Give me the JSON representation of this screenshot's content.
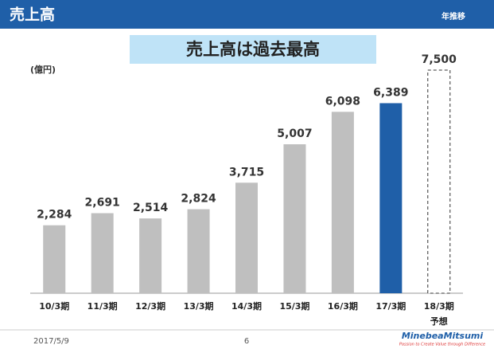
{
  "header": {
    "title": "売上高",
    "note": "年推移"
  },
  "chart_data": {
    "type": "bar",
    "title": "売上高は過去最高",
    "unit_label": "(億円)",
    "categories": [
      "10/3期",
      "11/3期",
      "12/3期",
      "13/3期",
      "14/3期",
      "15/3期",
      "16/3期",
      "17/3期",
      "18/3期"
    ],
    "category_sublabels": [
      null,
      null,
      null,
      null,
      null,
      null,
      null,
      null,
      "予想"
    ],
    "values": [
      2284,
      2691,
      2514,
      2824,
      3715,
      5007,
      6098,
      6389,
      7500
    ],
    "value_labels": [
      "2,284",
      "2,691",
      "2,514",
      "2,824",
      "3,715",
      "5,007",
      "6,098",
      "6,389",
      "7,500"
    ],
    "colors": [
      "#bfbfbf",
      "#bfbfbf",
      "#bfbfbf",
      "#bfbfbf",
      "#bfbfbf",
      "#bfbfbf",
      "#bfbfbf",
      "#1f5fa8",
      "#ffffff"
    ],
    "bar_styles": [
      "solid",
      "solid",
      "solid",
      "solid",
      "solid",
      "solid",
      "solid",
      "solid",
      "dashed"
    ],
    "ylim": [
      0,
      7500
    ]
  },
  "footer": {
    "date": "2017/5/9",
    "page": "6",
    "logo": "MinebeaMitsumi",
    "tagline": "Passion to Create Value through Difference"
  }
}
